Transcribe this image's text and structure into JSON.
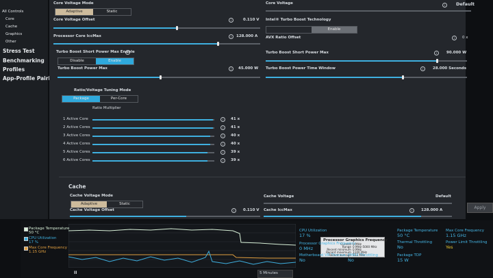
{
  "sidebar": [
    "All Controls",
    "Core",
    "Cache",
    "Graphics",
    "Other",
    "Stress Test",
    "Benchmarking",
    "Profiles",
    "App-Profile Pairing"
  ],
  "core": {
    "voltage_mode": {
      "label": "Core Voltage Mode",
      "options": [
        "Adaptive",
        "Static"
      ]
    },
    "voltage_offset": {
      "label": "Core Voltage Offset",
      "value": "0.110 V"
    },
    "iccmax": {
      "label": "Processor Core IccMax",
      "value": "128.000 A"
    },
    "short_power_enable": {
      "label": "Turbo Boost Short Power Max Enable",
      "options": [
        "Disable",
        "Enable"
      ]
    },
    "power_max": {
      "label": "Turbo Boost Power Max",
      "value": "45.000 W"
    },
    "voltage": {
      "label": "Core Voltage",
      "value": "Default"
    },
    "turbo_boost": {
      "label": "Intel® Turbo Boost Technology",
      "option": "Enable"
    },
    "avx_offset": {
      "label": "AVX Ratio Offset",
      "value": "0 x"
    },
    "short_power_max": {
      "label": "Turbo Boost Short Power Max",
      "value": "90.000 W"
    },
    "time_window": {
      "label": "Turbo Boost Power Time Window",
      "value": "28.000 Seconds"
    },
    "tuning_mode": {
      "label": "Ratio/Voltage Tuning Mode",
      "options": [
        "Package",
        "Per-Core"
      ]
    },
    "ratio_title": "Ratio Multiplier",
    "ratios": [
      {
        "label": "1 Active Core",
        "value": "41 x"
      },
      {
        "label": "2 Active Cores",
        "value": "41 x"
      },
      {
        "label": "3 Active Cores",
        "value": "40 x"
      },
      {
        "label": "4 Active Cores",
        "value": "40 x"
      },
      {
        "label": "5 Active Cores",
        "value": "39 x"
      },
      {
        "label": "6 Active Cores",
        "value": "39 x"
      }
    ]
  },
  "cache": {
    "title": "Cache",
    "voltage_mode": {
      "label": "Cache Voltage Mode",
      "options": [
        "Adaptive",
        "Static"
      ]
    },
    "voltage_offset": {
      "label": "Cache Voltage Offset",
      "value": "0.110 V"
    },
    "voltage": {
      "label": "Cache Voltage",
      "value": "Default"
    },
    "iccmax": {
      "label": "Cache IccMax",
      "value": "128.000 A"
    }
  },
  "apply": "Apply",
  "monitor": {
    "legend": [
      {
        "label": "Package Temperature",
        "value": "50 °C"
      },
      {
        "label": "CPU Utilization",
        "value": "17 %"
      },
      {
        "label": "Max Core Frequency",
        "value": "1.15 GHz"
      }
    ],
    "time_range": "5 Minutes",
    "stats": [
      {
        "label": "CPU Utilization",
        "value": "17 %"
      },
      {
        "label": "Package Temperature",
        "value": "50 °C"
      },
      {
        "label": "Max Core Frequency",
        "value": "1.15 GHz"
      },
      {
        "label": "Processor Graphics Frequency",
        "value": "0 MHz"
      },
      {
        "label": "Thermal Throttling",
        "value": "No"
      },
      {
        "label": "Power Limit Throttling",
        "value": "Yes"
      },
      {
        "label": "Motherboard VR Therma...",
        "value": "No"
      },
      {
        "label": "PMAX Throttling",
        "value": "No"
      },
      {
        "label": "Package TDP",
        "value": "15 W"
      }
    ],
    "tooltip": {
      "title": "Processor Graphics Frequency",
      "rows": [
        {
          "label": "Current",
          "value": "0 MHz"
        },
        {
          "label": "Range",
          "value": "0 MHz-5000 MHz"
        },
        {
          "label": "Recent minimum",
          "value": "0 MHz"
        },
        {
          "label": "Recent maximum",
          "value": "1100 MHz"
        },
        {
          "label": "Recent average",
          "value": "122 MHz"
        }
      ]
    }
  }
}
